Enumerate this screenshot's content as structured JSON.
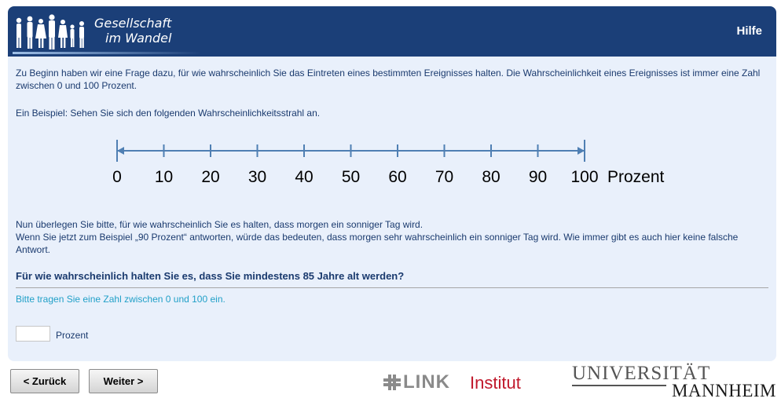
{
  "header": {
    "logo_line1": "Gesellschaft",
    "logo_line2": "im Wandel",
    "help_label": "Hilfe"
  },
  "intro": {
    "paragraph1": "Zu Beginn haben wir eine Frage dazu, für wie wahrscheinlich Sie das Eintreten eines bestimmten Ereignisses halten. Die Wahrscheinlichkeit eines Ereignisses ist immer eine Zahl zwischen 0 und 100 Prozent.",
    "paragraph2": "Ein Beispiel: Sehen Sie sich den folgenden Wahrscheinlichkeitsstrahl an."
  },
  "scale": {
    "ticks": [
      "0",
      "10",
      "20",
      "30",
      "40",
      "50",
      "60",
      "70",
      "80",
      "90",
      "100"
    ],
    "unit": "Prozent"
  },
  "explanation": {
    "line1": "Nun überlegen Sie bitte, für wie wahrscheinlich Sie es halten, dass morgen ein sonniger Tag wird.",
    "line2": "Wenn Sie jetzt zum Beispiel „90 Prozent“ antworten, würde das bedeuten, dass morgen sehr wahrscheinlich ein sonniger Tag wird. Wie immer gibt es auch hier keine falsche Antwort."
  },
  "question": {
    "text": "Für wie wahrscheinlich halten Sie es, dass Sie mindestens 85 Jahre alt werden?",
    "hint": "Bitte tragen Sie eine Zahl zwischen 0 und 100 ein.",
    "answer_value": "",
    "answer_unit": "Prozent"
  },
  "nav": {
    "back_label": "< Zurück",
    "next_label": "Weiter >"
  },
  "footer": {
    "link_word": "LINK",
    "link_institut": "Institut",
    "uni_line1": "UNIVERSITÄT",
    "uni_line2": "MANNHEIM"
  },
  "colors": {
    "header_bg": "#1b3f78",
    "panel_bg": "#e9f0fb",
    "text": "#1a3a6e",
    "hint": "#21a0c8",
    "scale_line": "#4f7fb3",
    "link_red": "#c0182b"
  }
}
